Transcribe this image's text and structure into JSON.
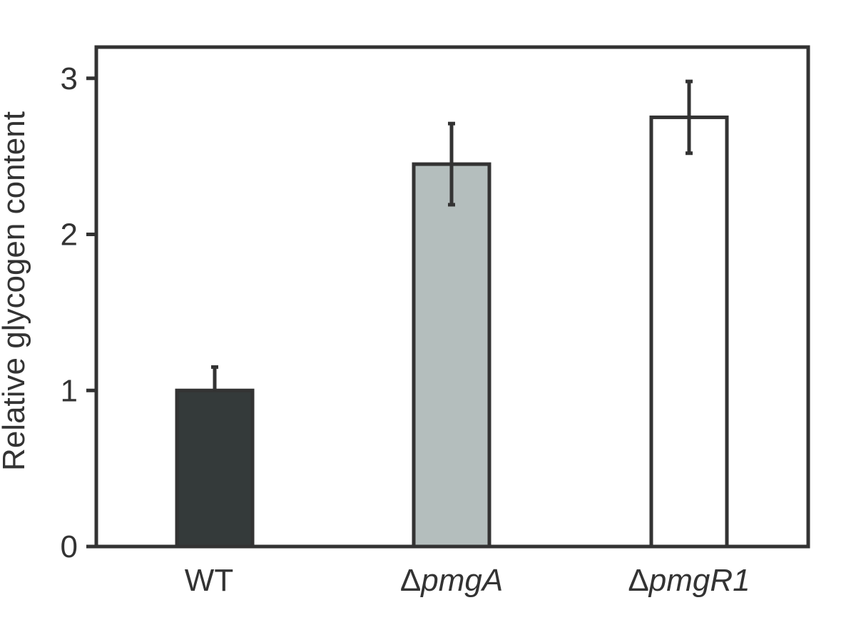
{
  "chart_data": {
    "type": "bar",
    "title": "",
    "ylabel": "Relative glycogen content",
    "xlabel": "",
    "ylim": [
      0,
      3.2
    ],
    "yticks": [
      0,
      1,
      2,
      3
    ],
    "grid": false,
    "categories": [
      {
        "prefix": "",
        "name": "WT",
        "italic": false
      },
      {
        "prefix": "Δ",
        "name": "pmgA",
        "italic": true
      },
      {
        "prefix": "Δ",
        "name": "pmgR1",
        "italic": true
      }
    ],
    "values": [
      1.0,
      2.45,
      2.75
    ],
    "errors": [
      0.15,
      0.26,
      0.23
    ],
    "colors": [
      "#343a3a",
      "#b4bebd",
      "#ffffff"
    ],
    "stroke_color": "#333333"
  }
}
